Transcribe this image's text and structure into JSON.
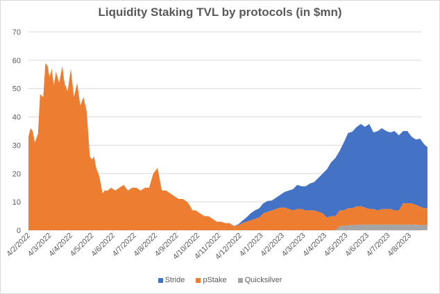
{
  "chart_data": {
    "type": "area",
    "stacked": true,
    "title": "Liquidity Staking TVL by protocols (in $mn)",
    "xlabel": "",
    "ylabel": "",
    "ylim": [
      0,
      70
    ],
    "yticks": [
      0,
      10,
      20,
      30,
      40,
      50,
      60,
      70
    ],
    "grid": true,
    "legend_position": "bottom",
    "xtick_labels": [
      "4/2/2022",
      "4/3/2022",
      "4/4/2022",
      "4/5/2022",
      "4/6/2022",
      "4/7/2022",
      "4/8/2022",
      "4/9/2022",
      "4/10/2022",
      "4/11/2022",
      "4/12/2022",
      "4/1/2023",
      "4/2/2023",
      "4/3/2023",
      "4/4/2023",
      "4/5/2023",
      "4/6/2023",
      "4/7/2023",
      "4/8/2023"
    ],
    "x_start_offset": 0,
    "x_end": 18.85,
    "x": [
      0,
      0.1,
      0.2,
      0.3,
      0.45,
      0.55,
      0.7,
      0.8,
      0.9,
      1.0,
      1.1,
      1.2,
      1.3,
      1.45,
      1.6,
      1.7,
      1.85,
      2.0,
      2.15,
      2.3,
      2.45,
      2.6,
      2.75,
      2.9,
      3.0,
      3.1,
      3.2,
      3.35,
      3.5,
      3.6,
      3.75,
      3.9,
      4.1,
      4.3,
      4.5,
      4.7,
      4.9,
      5.1,
      5.3,
      5.5,
      5.7,
      5.9,
      6.1,
      6.3,
      6.5,
      6.7,
      6.9,
      7.1,
      7.3,
      7.5,
      7.6,
      7.75,
      7.9,
      8.1,
      8.3,
      8.5,
      8.7,
      8.9,
      9.1,
      9.3,
      9.5,
      9.7,
      9.9,
      10.1,
      10.3,
      10.5,
      10.7,
      10.9,
      11.1,
      11.3,
      11.5,
      11.7,
      11.9,
      12.1,
      12.3,
      12.5,
      12.7,
      12.9,
      13.1,
      13.3,
      13.5,
      13.7,
      13.9,
      14.1,
      14.3,
      14.5,
      14.7,
      14.9,
      15.1,
      15.3,
      15.5,
      15.7,
      15.9,
      16.1,
      16.3,
      16.5,
      16.7,
      16.9,
      17.1,
      17.3,
      17.5,
      17.7,
      17.9,
      18.1,
      18.3,
      18.5,
      18.7,
      18.85
    ],
    "series": [
      {
        "name": "Stride",
        "color": "#4472C4",
        "values": [
          0,
          0,
          0,
          0,
          0,
          0,
          0,
          0,
          0,
          0,
          0,
          0,
          0,
          0,
          0,
          0,
          0,
          0,
          0,
          0,
          0,
          0,
          0,
          0,
          0,
          0,
          0,
          0,
          0,
          0,
          0,
          0,
          0,
          0,
          0,
          0,
          0,
          0,
          0,
          0,
          0,
          0,
          0,
          0,
          0,
          0,
          0,
          0,
          0,
          0,
          0,
          0,
          0,
          0,
          0,
          0,
          0,
          0,
          0,
          0,
          0,
          0,
          0.3,
          0.8,
          1.5,
          2.5,
          3.0,
          3.2,
          3.5,
          3.8,
          3.5,
          4.0,
          4.5,
          5.5,
          6.5,
          7.5,
          8.5,
          8.0,
          8.5,
          9.5,
          10.0,
          12.0,
          14.0,
          17.0,
          19.0,
          20.5,
          21.0,
          24.0,
          26.5,
          27.0,
          28.0,
          29.0,
          28.5,
          30.0,
          27.0,
          28.0,
          28.5,
          27.5,
          27.0,
          28.0,
          26.5,
          25.5,
          25.5,
          23.5,
          23.0,
          24.0,
          22.5,
          21.5
        ]
      },
      {
        "name": "pStake",
        "color": "#ED7D31",
        "values": [
          33,
          36,
          35,
          31,
          34,
          48,
          47,
          59,
          58,
          54,
          57,
          51,
          56,
          52,
          58,
          52,
          49,
          57,
          47,
          52,
          44,
          47,
          42,
          26,
          25,
          26,
          22,
          19,
          13,
          14,
          14,
          15,
          14,
          15,
          16,
          14,
          15,
          15,
          14,
          15,
          15,
          20,
          22,
          14,
          14,
          13,
          12,
          11,
          11,
          10,
          9,
          7,
          7,
          6,
          5,
          5,
          4,
          3,
          3,
          2.5,
          2.5,
          1.5,
          1.7,
          2.5,
          3.0,
          3.5,
          4,
          4.5,
          6,
          6.5,
          7,
          7.5,
          8,
          8,
          7.5,
          7,
          7.5,
          7.5,
          7,
          7,
          7,
          6.5,
          6,
          4.5,
          5,
          5,
          5.5,
          5.5,
          6,
          6,
          6.5,
          6.5,
          6,
          5.5,
          5.5,
          5,
          5.5,
          5.5,
          5.5,
          5,
          5,
          7.5,
          7.5,
          7.5,
          7,
          6.5,
          6,
          6
        ]
      },
      {
        "name": "Quicksilver",
        "color": "#A5A5A5",
        "values": [
          0,
          0,
          0,
          0,
          0,
          0,
          0,
          0,
          0,
          0,
          0,
          0,
          0,
          0,
          0,
          0,
          0,
          0,
          0,
          0,
          0,
          0,
          0,
          0,
          0,
          0,
          0,
          0,
          0,
          0,
          0,
          0,
          0,
          0,
          0,
          0,
          0,
          0,
          0,
          0,
          0,
          0,
          0,
          0,
          0,
          0,
          0,
          0,
          0,
          0,
          0,
          0,
          0,
          0,
          0,
          0,
          0,
          0,
          0,
          0,
          0,
          0,
          0,
          0,
          0,
          0,
          0,
          0,
          0,
          0,
          0,
          0,
          0,
          0,
          0,
          0,
          0,
          0,
          0,
          0,
          0,
          0,
          0,
          0,
          0,
          0,
          1.5,
          1.5,
          1.8,
          1.8,
          1.9,
          2,
          2,
          2,
          2,
          2,
          2,
          2,
          2,
          2,
          2,
          2,
          2,
          2,
          2,
          1.8,
          1.8,
          1.8
        ]
      }
    ]
  }
}
